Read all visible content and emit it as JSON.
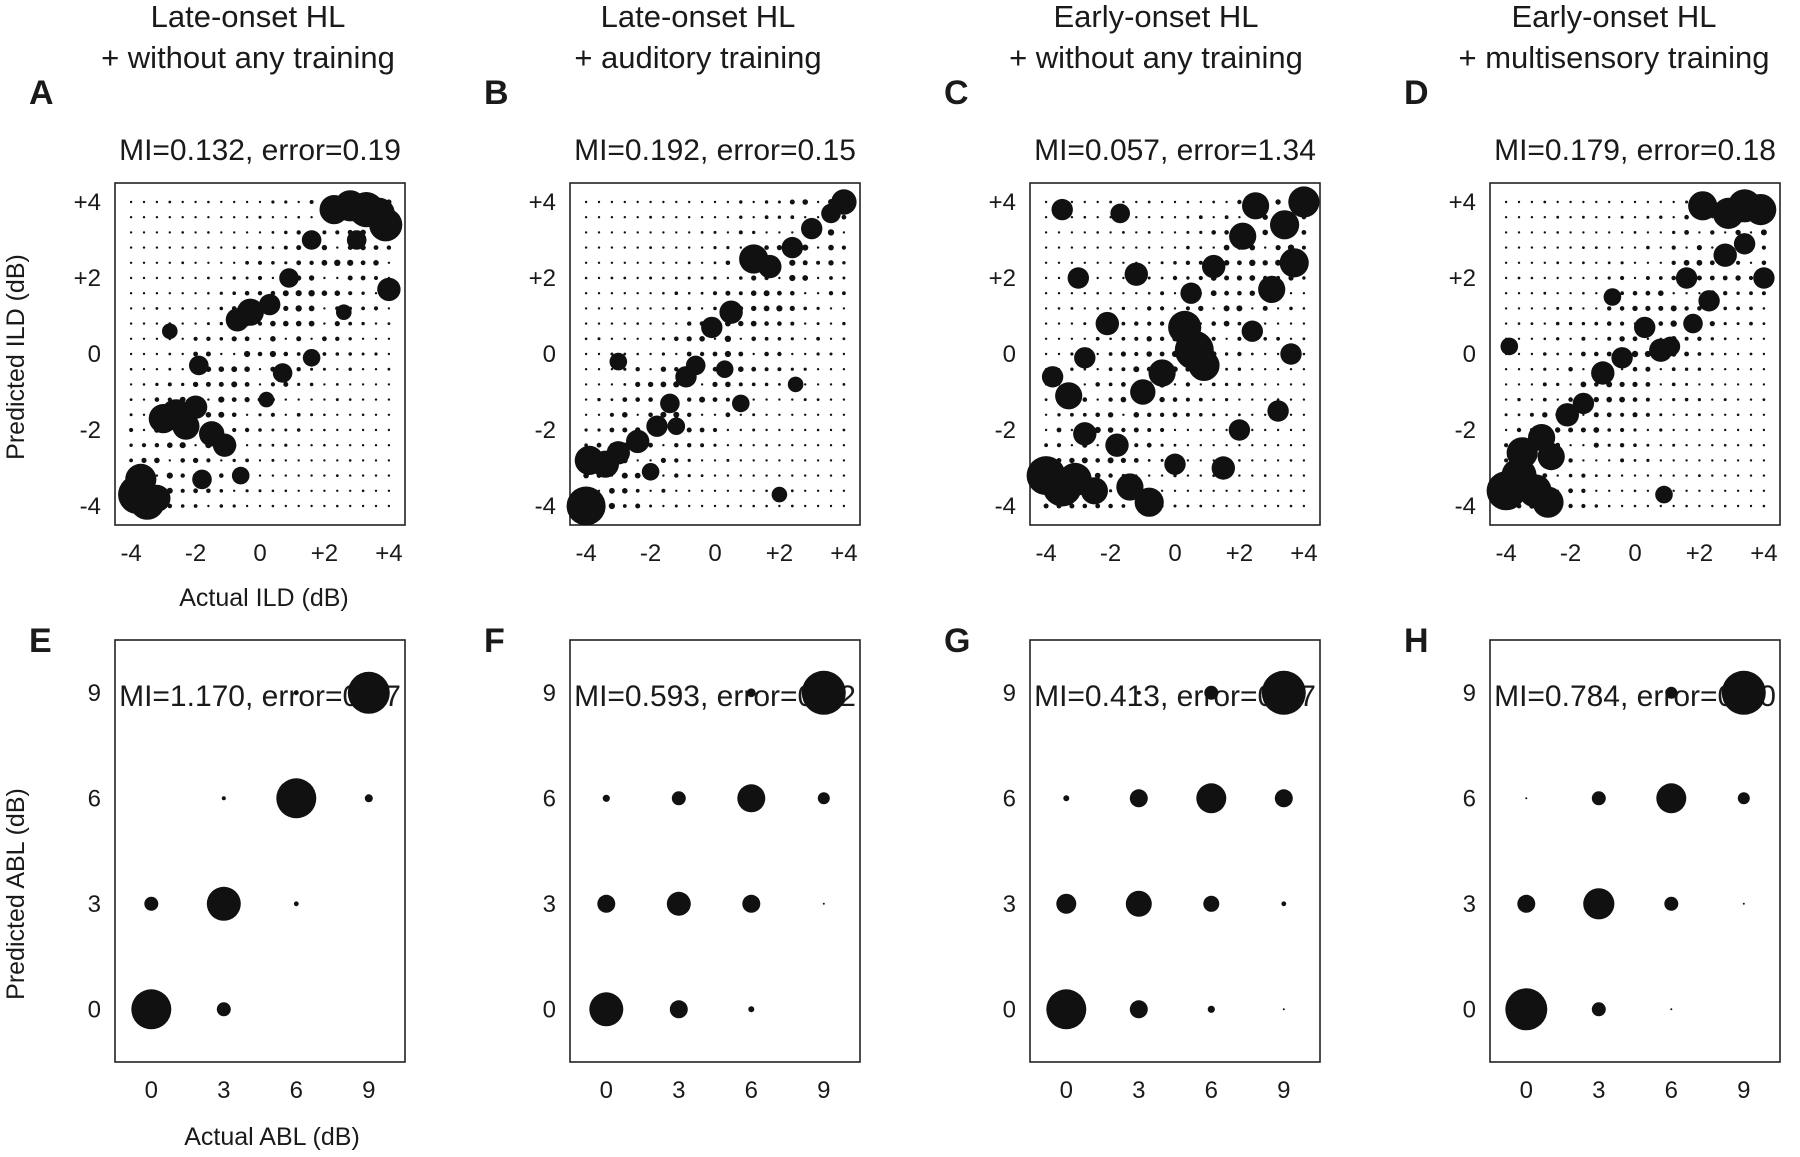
{
  "columns": [
    {
      "title_line1": "Late-onset HL",
      "title_line2": "+ without any training"
    },
    {
      "title_line1": "Late-onset HL",
      "title_line2": "+ auditory training"
    },
    {
      "title_line1": "Early-onset HL",
      "title_line2": "+ without any training"
    },
    {
      "title_line1": "Early-onset HL",
      "title_line2": "+ multisensory training"
    }
  ],
  "axis_labels": {
    "ild_x": "Actual ILD (dB)",
    "ild_y": "Predicted ILD (dB)",
    "abl_x": "Actual ABL (dB)",
    "abl_y": "Predicted ABL (dB)"
  },
  "chart_data": [
    {
      "type": "scatter",
      "panel": "A",
      "row": "ILD",
      "title": "MI=0.132, error=0.19",
      "x_ticks": [
        "-4",
        "-2",
        "0",
        "+2",
        "+4"
      ],
      "y_ticks": [
        "-4",
        "-2",
        "0",
        "+2",
        "+4"
      ],
      "xlim": [
        -4.5,
        4.5
      ],
      "ylim": [
        -4.5,
        4.5
      ],
      "grid": false,
      "note": "dense bubble matrix; strong diagonal band with large bubbles clustered at bottom-left (-4,-4) and top-right (+4,+4)",
      "points": [
        [
          -3.8,
          -3.7,
          1.0
        ],
        [
          -3.5,
          -3.9,
          0.9
        ],
        [
          -3.7,
          -3.3,
          0.8
        ],
        [
          -3.2,
          -3.8,
          0.7
        ],
        [
          -3.0,
          -1.7,
          0.75
        ],
        [
          -2.6,
          -1.6,
          0.8
        ],
        [
          -2.3,
          -1.9,
          0.7
        ],
        [
          -2.0,
          -1.4,
          0.6
        ],
        [
          -1.5,
          -2.1,
          0.65
        ],
        [
          -1.1,
          -2.4,
          0.6
        ],
        [
          -1.9,
          -0.3,
          0.5
        ],
        [
          -0.7,
          0.9,
          0.6
        ],
        [
          -0.3,
          1.1,
          0.7
        ],
        [
          0.3,
          1.3,
          0.55
        ],
        [
          0.9,
          2.0,
          0.5
        ],
        [
          1.6,
          3.0,
          0.5
        ],
        [
          2.3,
          3.8,
          0.75
        ],
        [
          2.8,
          3.9,
          0.8
        ],
        [
          3.3,
          3.8,
          0.9
        ],
        [
          3.7,
          3.7,
          0.8
        ],
        [
          3.9,
          3.4,
          0.85
        ],
        [
          4.0,
          1.7,
          0.6
        ],
        [
          3.0,
          3.0,
          0.5
        ],
        [
          0.7,
          -0.5,
          0.5
        ],
        [
          1.6,
          -0.1,
          0.45
        ],
        [
          0.2,
          -1.2,
          0.4
        ],
        [
          -2.8,
          0.6,
          0.4
        ],
        [
          -1.8,
          -3.3,
          0.5
        ],
        [
          -0.6,
          -3.2,
          0.45
        ],
        [
          2.6,
          1.1,
          0.4
        ]
      ],
      "scatter_seed": 11
    },
    {
      "type": "scatter",
      "panel": "B",
      "row": "ILD",
      "title": "MI=0.192, error=0.15",
      "x_ticks": [
        "-4",
        "-2",
        "0",
        "+2",
        "+4"
      ],
      "y_ticks": [
        "-4",
        "-2",
        "0",
        "+2",
        "+4"
      ],
      "xlim": [
        -4.5,
        4.5
      ],
      "ylim": [
        -4.5,
        4.5
      ],
      "grid": false,
      "note": "bubble matrix with a clear diagonal; largest bubbles near (-4,-4)",
      "points": [
        [
          -4.0,
          -4.0,
          1.0
        ],
        [
          -3.9,
          -2.8,
          0.75
        ],
        [
          -3.4,
          -2.9,
          0.7
        ],
        [
          -3.0,
          -2.6,
          0.6
        ],
        [
          -2.4,
          -2.3,
          0.6
        ],
        [
          -1.8,
          -1.9,
          0.55
        ],
        [
          -1.4,
          -1.3,
          0.5
        ],
        [
          -0.9,
          -0.6,
          0.55
        ],
        [
          -0.6,
          -0.3,
          0.5
        ],
        [
          -0.1,
          0.7,
          0.55
        ],
        [
          0.5,
          1.1,
          0.6
        ],
        [
          1.2,
          2.5,
          0.75
        ],
        [
          1.7,
          2.3,
          0.6
        ],
        [
          2.4,
          2.8,
          0.55
        ],
        [
          3.0,
          3.3,
          0.55
        ],
        [
          3.6,
          3.7,
          0.5
        ],
        [
          4.0,
          4.0,
          0.65
        ],
        [
          -3.0,
          -0.2,
          0.45
        ],
        [
          -1.2,
          -1.9,
          0.45
        ],
        [
          0.8,
          -1.3,
          0.45
        ],
        [
          2.0,
          -3.7,
          0.4
        ],
        [
          2.5,
          -0.8,
          0.4
        ],
        [
          0.3,
          -0.4,
          0.45
        ],
        [
          -2.0,
          -3.1,
          0.45
        ]
      ],
      "scatter_seed": 23
    },
    {
      "type": "scatter",
      "panel": "C",
      "row": "ILD",
      "title": "MI=0.057, error=1.34",
      "x_ticks": [
        "-4",
        "-2",
        "0",
        "+2",
        "+4"
      ],
      "y_ticks": [
        "-4",
        "-2",
        "0",
        "+2",
        "+4"
      ],
      "xlim": [
        -4.5,
        4.5
      ],
      "ylim": [
        -4.5,
        4.5
      ],
      "grid": false,
      "note": "widely spread bubble matrix with many large bubbles off the diagonal",
      "points": [
        [
          -4.0,
          -3.2,
          1.0
        ],
        [
          -3.5,
          -3.5,
          1.0
        ],
        [
          -3.1,
          -3.3,
          0.85
        ],
        [
          -2.5,
          -3.6,
          0.7
        ],
        [
          -0.8,
          -3.9,
          0.75
        ],
        [
          -1.4,
          -3.5,
          0.7
        ],
        [
          0.0,
          -2.9,
          0.55
        ],
        [
          0.6,
          0.1,
          1.0
        ],
        [
          0.3,
          0.7,
          0.85
        ],
        [
          0.9,
          -0.3,
          0.8
        ],
        [
          -0.4,
          -0.5,
          0.7
        ],
        [
          -1.0,
          -1.0,
          0.65
        ],
        [
          -1.8,
          -2.4,
          0.6
        ],
        [
          -2.1,
          0.8,
          0.6
        ],
        [
          -3.0,
          2.0,
          0.55
        ],
        [
          -3.3,
          -1.1,
          0.7
        ],
        [
          -3.8,
          -0.6,
          0.55
        ],
        [
          -2.8,
          -0.1,
          0.55
        ],
        [
          -1.2,
          2.1,
          0.6
        ],
        [
          1.2,
          2.3,
          0.6
        ],
        [
          2.1,
          3.1,
          0.7
        ],
        [
          2.5,
          3.9,
          0.7
        ],
        [
          3.4,
          3.4,
          0.75
        ],
        [
          4.0,
          4.0,
          0.8
        ],
        [
          3.7,
          2.4,
          0.75
        ],
        [
          3.0,
          1.7,
          0.7
        ],
        [
          2.4,
          0.6,
          0.55
        ],
        [
          3.6,
          0.0,
          0.55
        ],
        [
          3.2,
          -1.5,
          0.55
        ],
        [
          2.0,
          -2.0,
          0.55
        ],
        [
          1.5,
          -3.0,
          0.6
        ],
        [
          -3.5,
          3.8,
          0.55
        ],
        [
          -1.7,
          3.7,
          0.5
        ],
        [
          -2.8,
          -2.1,
          0.6
        ],
        [
          0.5,
          1.6,
          0.55
        ]
      ],
      "scatter_seed": 37
    },
    {
      "type": "scatter",
      "panel": "D",
      "row": "ILD",
      "title": "MI=0.179, error=0.18",
      "x_ticks": [
        "-4",
        "-2",
        "0",
        "+2",
        "+4"
      ],
      "y_ticks": [
        "-4",
        "-2",
        "0",
        "+2",
        "+4"
      ],
      "xlim": [
        -4.5,
        4.5
      ],
      "ylim": [
        -4.5,
        4.5
      ],
      "grid": false,
      "note": "bubble matrix with diagonal trend; large bubbles at both ends",
      "points": [
        [
          -4.0,
          -3.6,
          1.0
        ],
        [
          -3.6,
          -3.2,
          0.9
        ],
        [
          -3.1,
          -3.6,
          0.85
        ],
        [
          -2.7,
          -3.9,
          0.8
        ],
        [
          -3.5,
          -2.6,
          0.8
        ],
        [
          -2.9,
          -2.2,
          0.7
        ],
        [
          -2.6,
          -2.7,
          0.7
        ],
        [
          -2.1,
          -1.6,
          0.6
        ],
        [
          -1.6,
          -1.3,
          0.55
        ],
        [
          -1.0,
          -0.5,
          0.6
        ],
        [
          -0.4,
          -0.1,
          0.55
        ],
        [
          0.3,
          0.7,
          0.55
        ],
        [
          0.8,
          0.1,
          0.6
        ],
        [
          1.1,
          0.2,
          0.5
        ],
        [
          1.8,
          0.8,
          0.5
        ],
        [
          2.3,
          1.4,
          0.55
        ],
        [
          1.6,
          2.0,
          0.55
        ],
        [
          2.8,
          2.6,
          0.6
        ],
        [
          3.4,
          2.9,
          0.55
        ],
        [
          2.1,
          3.9,
          0.75
        ],
        [
          2.9,
          3.7,
          0.8
        ],
        [
          3.4,
          3.9,
          0.85
        ],
        [
          3.9,
          3.8,
          0.8
        ],
        [
          4.0,
          2.0,
          0.55
        ],
        [
          -3.9,
          0.2,
          0.45
        ],
        [
          0.9,
          -3.7,
          0.45
        ],
        [
          -0.7,
          1.5,
          0.45
        ]
      ],
      "scatter_seed": 53
    },
    {
      "type": "scatter",
      "panel": "E",
      "row": "ABL",
      "title": "MI=1.170, error=0.07",
      "x": [
        0,
        3,
        6,
        9
      ],
      "y": [
        0,
        3,
        6,
        9
      ],
      "x_ticks": [
        "0",
        "3",
        "6",
        "9"
      ],
      "y_ticks": [
        "0",
        "3",
        "6",
        "9"
      ],
      "xlim": [
        -1.5,
        10.5
      ],
      "ylim": [
        -1.5,
        10.5
      ],
      "grid": false,
      "points": [
        [
          0,
          0,
          1.0
        ],
        [
          3,
          0,
          0.35
        ],
        [
          0,
          3,
          0.35
        ],
        [
          3,
          3,
          0.85
        ],
        [
          6,
          3,
          0.12
        ],
        [
          3,
          6,
          0.1
        ],
        [
          6,
          6,
          1.0
        ],
        [
          9,
          6,
          0.2
        ],
        [
          6,
          9,
          0.12
        ],
        [
          9,
          9,
          1.05
        ]
      ]
    },
    {
      "type": "scatter",
      "panel": "F",
      "row": "ABL",
      "title": "MI=0.593, error=0.12",
      "x": [
        0,
        3,
        6,
        9
      ],
      "y": [
        0,
        3,
        6,
        9
      ],
      "x_ticks": [
        "0",
        "3",
        "6",
        "9"
      ],
      "y_ticks": [
        "0",
        "3",
        "6",
        "9"
      ],
      "xlim": [
        -1.5,
        10.5
      ],
      "ylim": [
        -1.5,
        10.5
      ],
      "grid": false,
      "points": [
        [
          0,
          0,
          0.85
        ],
        [
          3,
          0,
          0.45
        ],
        [
          6,
          0,
          0.15
        ],
        [
          0,
          3,
          0.45
        ],
        [
          3,
          3,
          0.6
        ],
        [
          6,
          3,
          0.45
        ],
        [
          9,
          3,
          0.05
        ],
        [
          0,
          6,
          0.18
        ],
        [
          3,
          6,
          0.35
        ],
        [
          6,
          6,
          0.7
        ],
        [
          9,
          6,
          0.3
        ],
        [
          3,
          9,
          0.05
        ],
        [
          6,
          9,
          0.22
        ],
        [
          9,
          9,
          1.1
        ]
      ]
    },
    {
      "type": "scatter",
      "panel": "G",
      "row": "ABL",
      "title": "MI=0.413, error=0.17",
      "x": [
        0,
        3,
        6,
        9
      ],
      "y": [
        0,
        3,
        6,
        9
      ],
      "x_ticks": [
        "0",
        "3",
        "6",
        "9"
      ],
      "y_ticks": [
        "0",
        "3",
        "6",
        "9"
      ],
      "xlim": [
        -1.5,
        10.5
      ],
      "ylim": [
        -1.5,
        10.5
      ],
      "grid": false,
      "points": [
        [
          0,
          0,
          1.0
        ],
        [
          3,
          0,
          0.45
        ],
        [
          6,
          0,
          0.18
        ],
        [
          9,
          0,
          0.05
        ],
        [
          0,
          3,
          0.5
        ],
        [
          3,
          3,
          0.65
        ],
        [
          6,
          3,
          0.4
        ],
        [
          9,
          3,
          0.12
        ],
        [
          0,
          6,
          0.15
        ],
        [
          3,
          6,
          0.45
        ],
        [
          6,
          6,
          0.75
        ],
        [
          9,
          6,
          0.45
        ],
        [
          3,
          9,
          0.1
        ],
        [
          6,
          9,
          0.35
        ],
        [
          9,
          9,
          1.1
        ]
      ]
    },
    {
      "type": "scatter",
      "panel": "H",
      "row": "ABL",
      "title": "MI=0.784, error=0.10",
      "x": [
        0,
        3,
        6,
        9
      ],
      "y": [
        0,
        3,
        6,
        9
      ],
      "x_ticks": [
        "0",
        "3",
        "6",
        "9"
      ],
      "y_ticks": [
        "0",
        "3",
        "6",
        "9"
      ],
      "xlim": [
        -1.5,
        10.5
      ],
      "ylim": [
        -1.5,
        10.5
      ],
      "grid": false,
      "points": [
        [
          0,
          0,
          1.05
        ],
        [
          3,
          0,
          0.35
        ],
        [
          6,
          0,
          0.05
        ],
        [
          0,
          3,
          0.45
        ],
        [
          3,
          3,
          0.78
        ],
        [
          6,
          3,
          0.35
        ],
        [
          9,
          3,
          0.05
        ],
        [
          0,
          6,
          0.05
        ],
        [
          3,
          6,
          0.35
        ],
        [
          6,
          6,
          0.75
        ],
        [
          9,
          6,
          0.3
        ],
        [
          3,
          9,
          0.08
        ],
        [
          6,
          9,
          0.3
        ],
        [
          9,
          9,
          1.1
        ]
      ]
    }
  ]
}
